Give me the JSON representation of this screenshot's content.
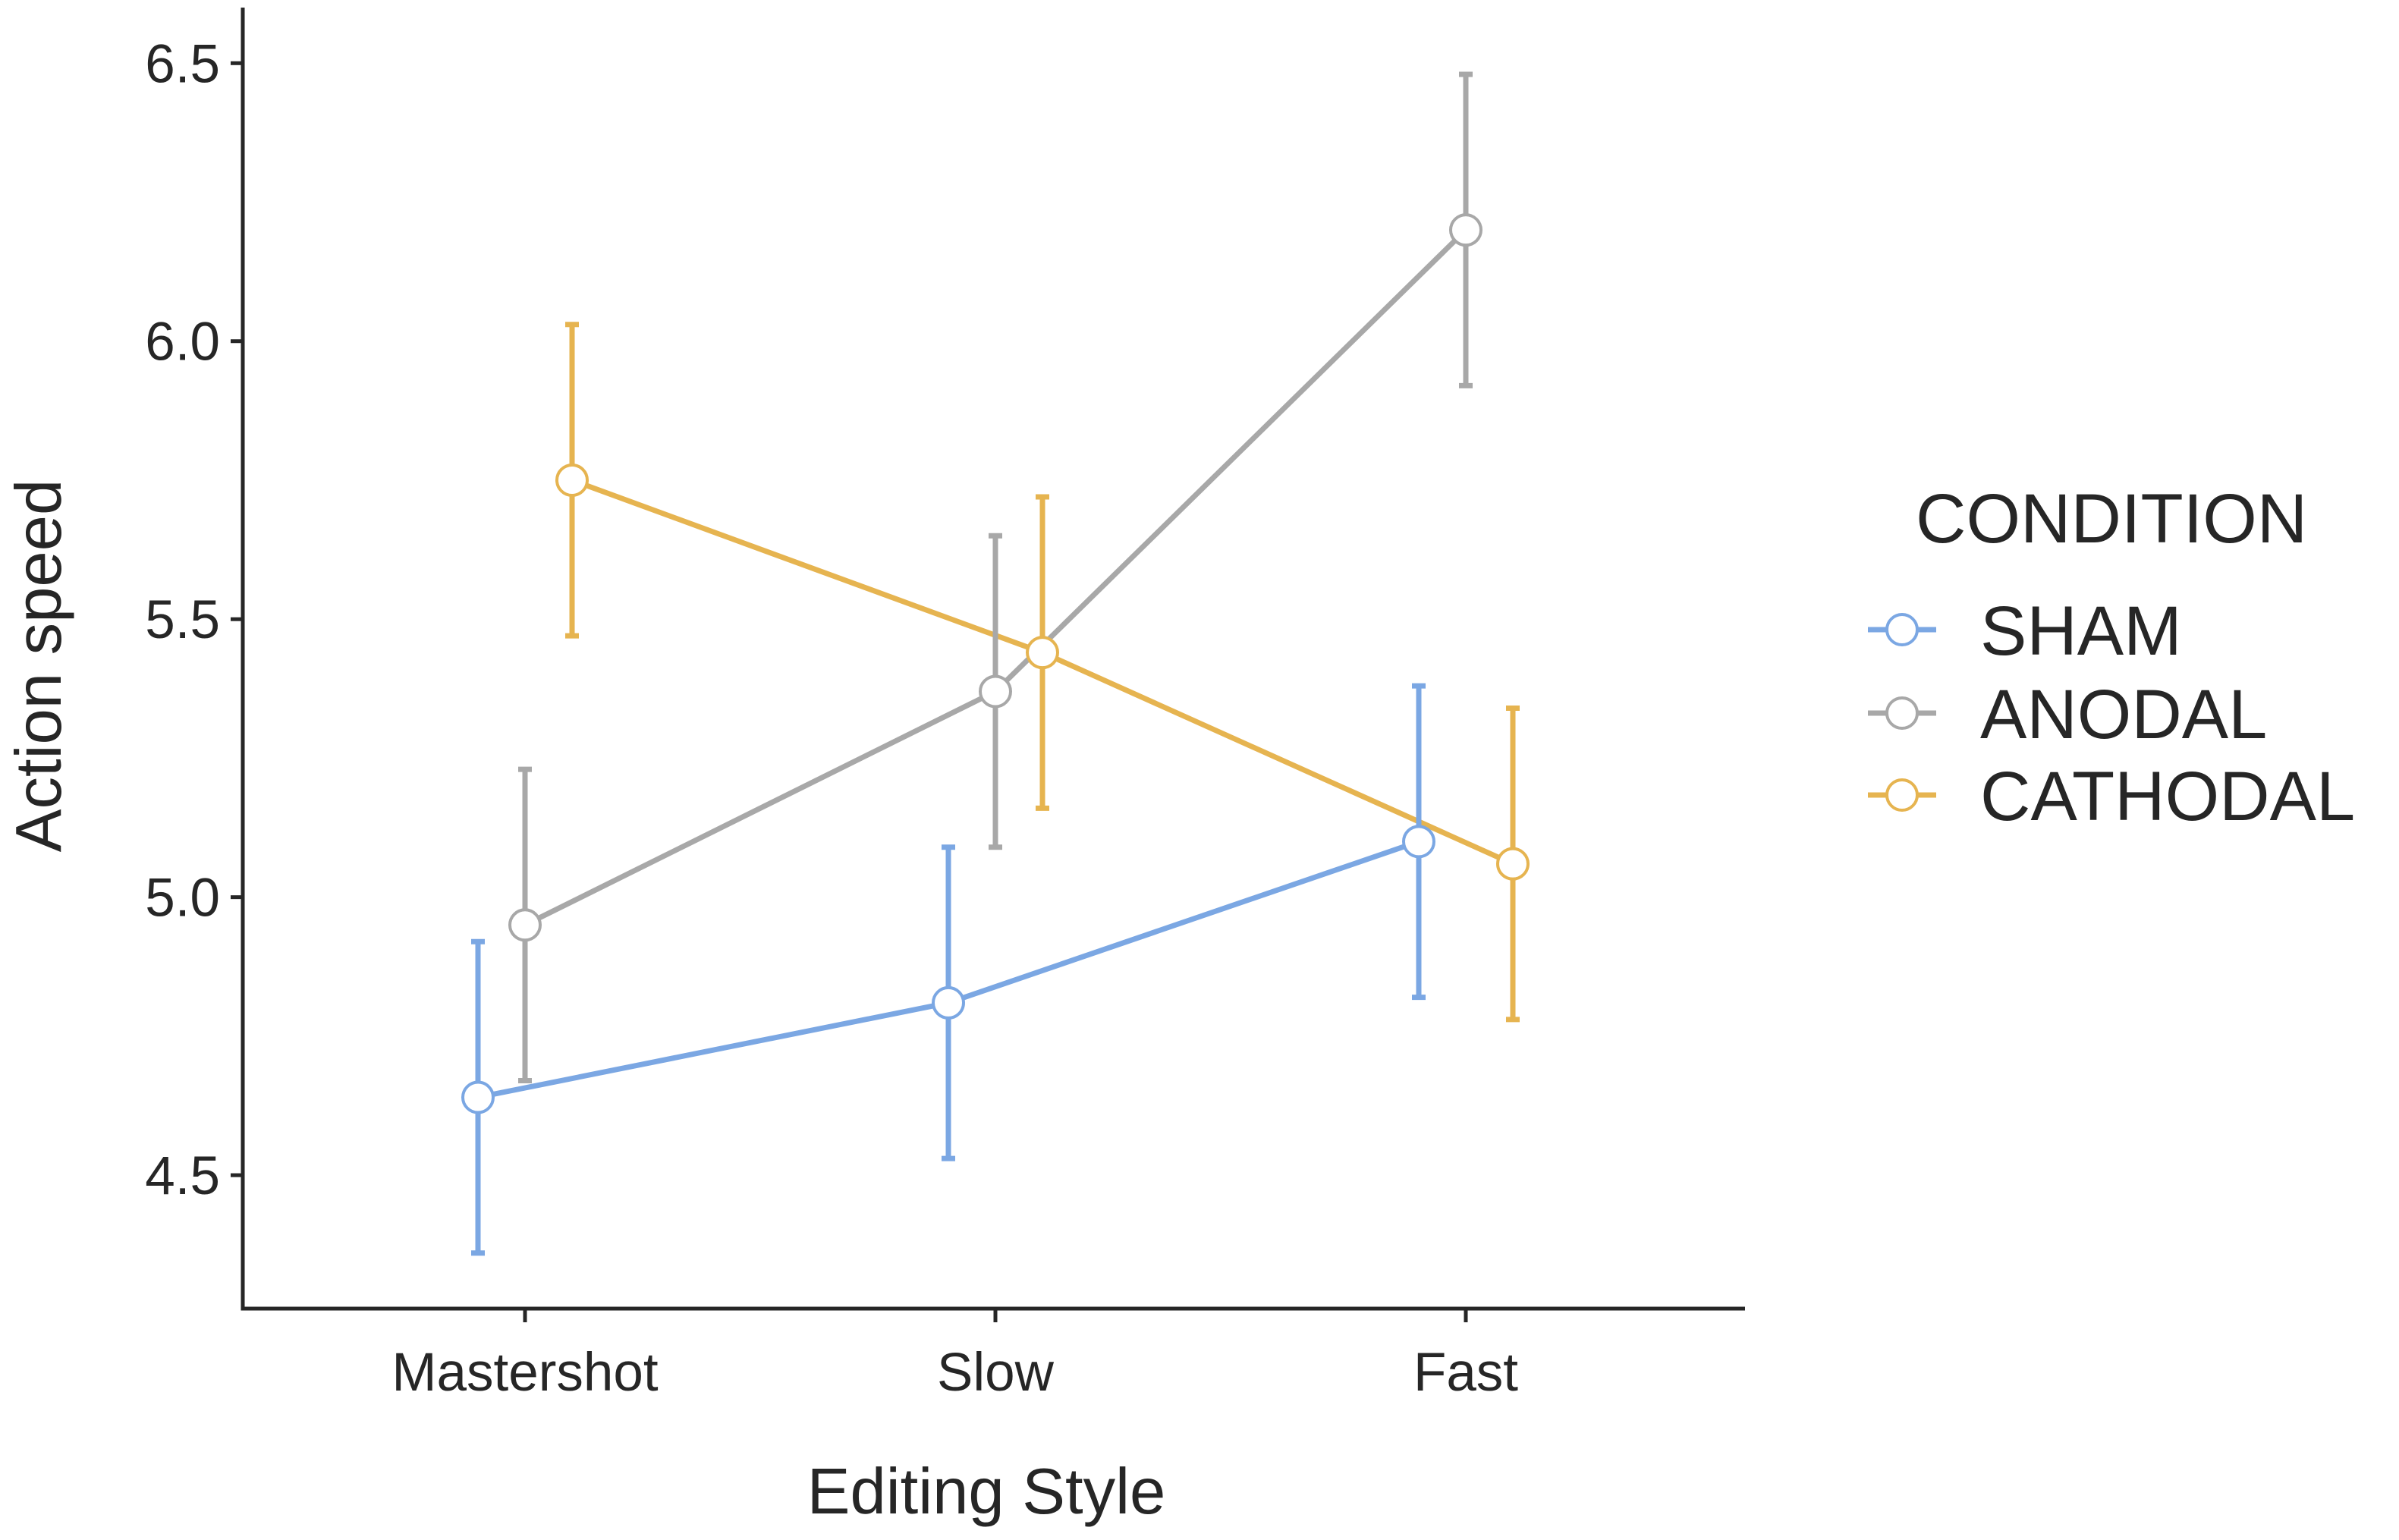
{
  "chart_data": {
    "type": "line",
    "xlabel": "Editing Style",
    "ylabel": "Action speed",
    "categories": [
      "Mastershot",
      "Slow",
      "Fast"
    ],
    "ylim": [
      4.26,
      6.6
    ],
    "yticks": [
      4.5,
      5.0,
      5.5,
      6.0,
      6.5
    ],
    "ytick_labels": [
      "4.5",
      "5.0",
      "5.5",
      "6.0",
      "6.5"
    ],
    "grid": false,
    "error_bars": true,
    "legend": {
      "title": "CONDITION",
      "position": "right"
    },
    "series": [
      {
        "name": "SHAM",
        "color": "#7ba7e3",
        "values": [
          4.64,
          4.81,
          5.1
        ],
        "lower": [
          4.36,
          4.53,
          4.82
        ],
        "upper": [
          4.92,
          5.09,
          5.38
        ]
      },
      {
        "name": "ANODAL",
        "color": "#a8a8a8",
        "values": [
          4.95,
          5.37,
          6.2
        ],
        "lower": [
          4.67,
          5.09,
          5.92
        ],
        "upper": [
          5.23,
          5.65,
          6.48
        ]
      },
      {
        "name": "CATHODAL",
        "color": "#e6b450",
        "values": [
          5.75,
          5.44,
          5.06
        ],
        "lower": [
          5.47,
          5.16,
          4.78
        ],
        "upper": [
          6.03,
          5.72,
          5.34
        ]
      }
    ]
  }
}
